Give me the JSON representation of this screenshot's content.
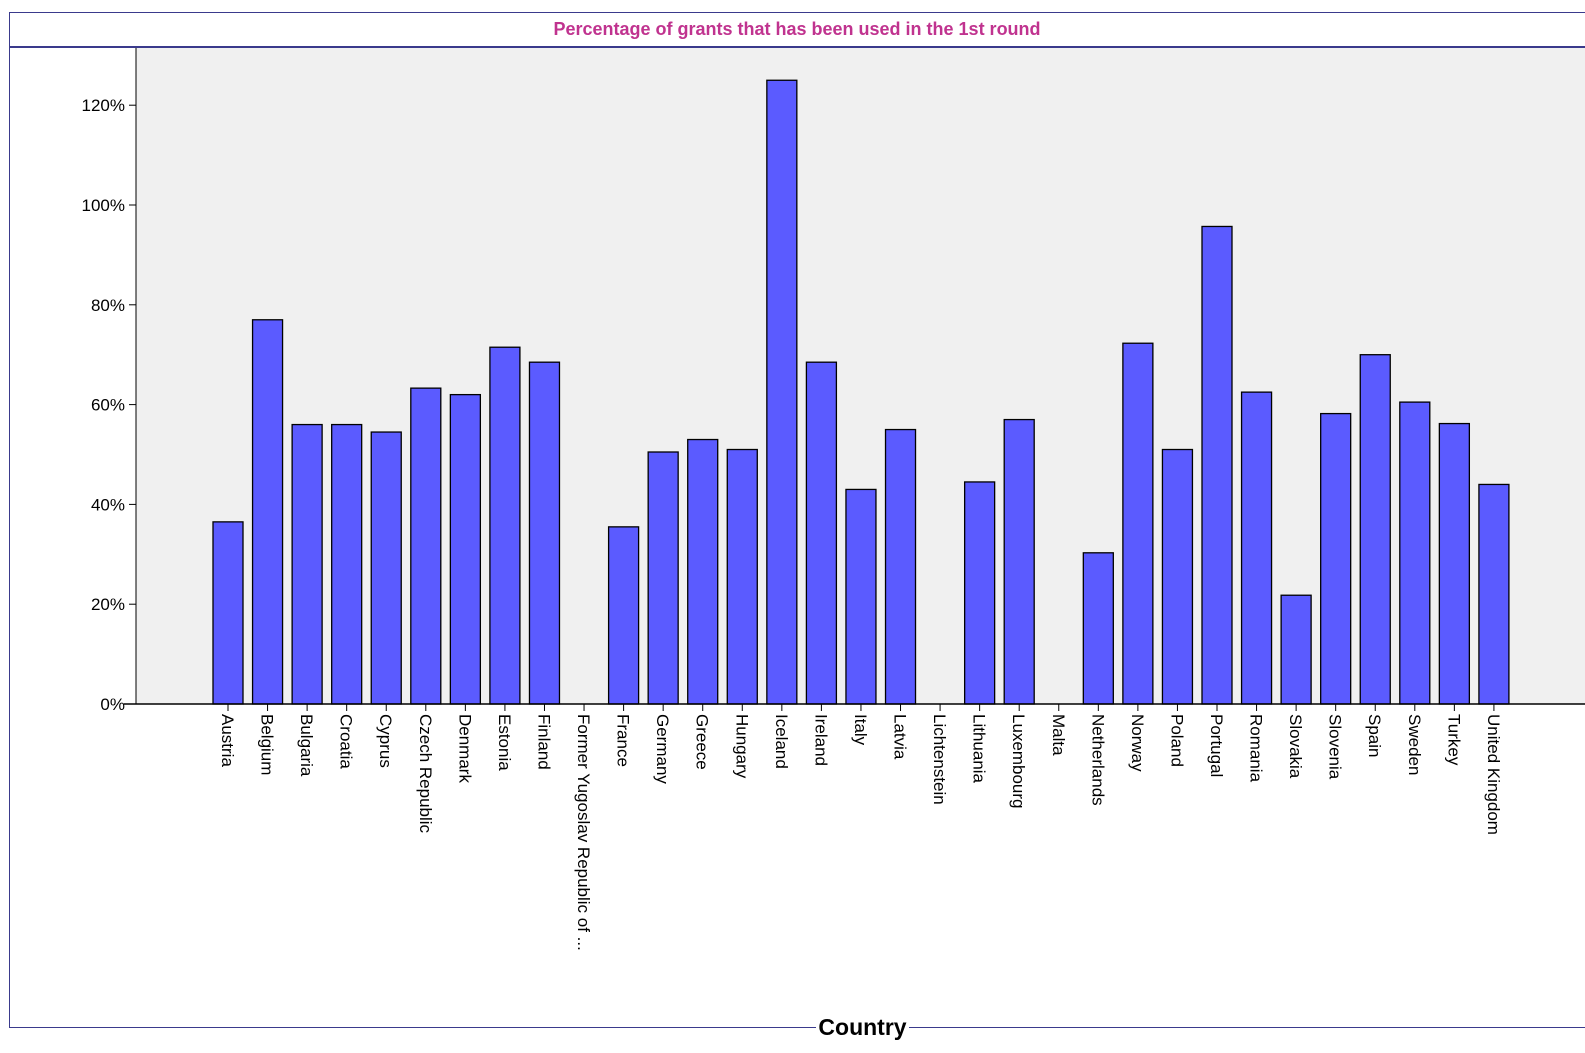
{
  "chart_data": {
    "type": "bar",
    "title": "Percentage of grants that has been used in the 1st round",
    "xlabel": "Country",
    "ylabel": "",
    "ylim": [
      0,
      130
    ],
    "yticks": [
      "0%",
      "20%",
      "40%",
      "60%",
      "80%",
      "100%",
      "120%"
    ],
    "ytick_values": [
      0,
      20,
      40,
      60,
      80,
      100,
      120
    ],
    "categories": [
      "Austria",
      "Belgium",
      "Bulgaria",
      "Croatia",
      "Cyprus",
      "Czech Republic",
      "Denmark",
      "Estonia",
      "Finland",
      "Former Yugoslav Republic of ...",
      "France",
      "Germany",
      "Greece",
      "Hungary",
      "Iceland",
      "Ireland",
      "Italy",
      "Latvia",
      "Lichtenstein",
      "Lithuania",
      "Luxembourg",
      "Malta",
      "Netherlands",
      "Norway",
      "Poland",
      "Portugal",
      "Romania",
      "Slovakia",
      "Slovenia",
      "Spain",
      "Sweden",
      "Turkey",
      "United Kingdom"
    ],
    "values": [
      36.5,
      77,
      56,
      56,
      54.5,
      63.3,
      62,
      71.5,
      68.5,
      0,
      35.5,
      50.5,
      53,
      51,
      125,
      68.5,
      43,
      55,
      0,
      44.5,
      57,
      0,
      30.3,
      72.3,
      51,
      95.7,
      62.5,
      21.8,
      58.2,
      70,
      60.5,
      56.2,
      44
    ],
    "bar_color": "#5b5bff",
    "plot_background": "#f0f0f0",
    "grid": false,
    "legend": "none"
  }
}
